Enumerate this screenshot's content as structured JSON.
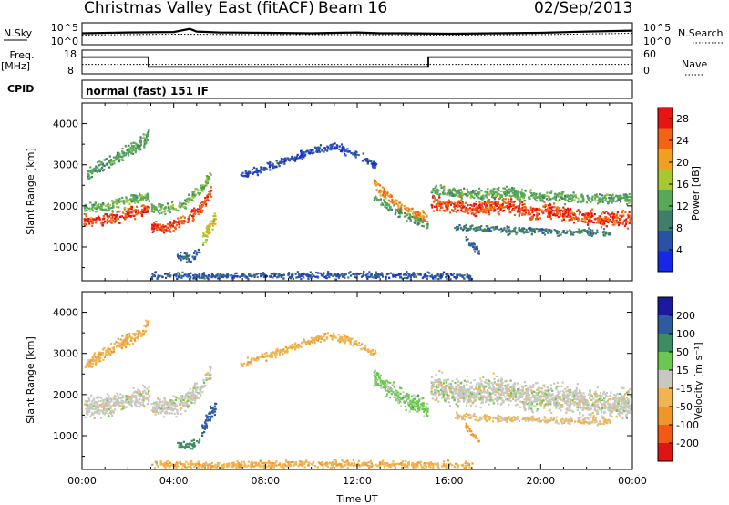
{
  "header": {
    "title": "Christmas Valley East (fitACF)",
    "beam": "Beam 16",
    "date": "02/Sep/2013"
  },
  "strip_labels": {
    "nsky": "N.Sky",
    "nsearch": "N.Search",
    "freq_line1": "Freq.",
    "freq_line2": "[MHz]",
    "nave": "Nave",
    "cpid": "CPID",
    "cpid_value": "normal (fast) 151 IF"
  },
  "chart_data": [
    {
      "type": "line",
      "panel": "noise",
      "left_axis_ticks": [
        "10^5",
        "10^0"
      ],
      "right_axis_ticks": [
        "10^5",
        "10^0"
      ],
      "series": [
        {
          "name": "N.Sky",
          "x": [
            0,
            2,
            4,
            4.7,
            5,
            6,
            8,
            10,
            12,
            13,
            14,
            16,
            18,
            20,
            22,
            24
          ],
          "y": [
            2.6,
            2.8,
            2.9,
            3.6,
            3.0,
            2.8,
            2.7,
            2.6,
            2.8,
            2.6,
            2.6,
            2.5,
            2.6,
            2.7,
            3.0,
            3.2
          ]
        },
        {
          "name": "N.Search",
          "x": [
            0,
            4,
            8,
            12,
            16,
            20,
            24
          ],
          "y": [
            2.2,
            2.4,
            2.3,
            2.3,
            2.2,
            2.3,
            2.6
          ]
        }
      ]
    },
    {
      "type": "line",
      "panel": "frequency",
      "left_axis_ticks": [
        "18",
        "8"
      ],
      "right_axis_ticks": [
        "60",
        "0"
      ],
      "series": [
        {
          "name": "Freq.",
          "x": [
            0,
            2.9,
            2.9,
            15.1,
            15.1,
            23.95
          ],
          "y": [
            14.5,
            14.5,
            9.5,
            9.5,
            14.5,
            14.5
          ]
        },
        {
          "name": "Nave",
          "x": [
            0,
            24
          ],
          "y": [
            10.8,
            10.8
          ]
        }
      ]
    },
    {
      "type": "heatmap",
      "panel": "power",
      "xlabel": "",
      "ylabel": "Slant Range [km]",
      "xlim": [
        0,
        24
      ],
      "ylim": [
        180,
        4500
      ],
      "y_ticks": [
        1000,
        2000,
        3000,
        4000
      ],
      "colorbar": {
        "label": "Power [dB]",
        "ticks": [
          4,
          8,
          12,
          16,
          20,
          24,
          28
        ],
        "range": [
          0,
          30
        ]
      },
      "features": [
        {
          "x": [
            0.05,
            1.0,
            2.0,
            2.9
          ],
          "y": [
            1650,
            1700,
            1850,
            1950
          ],
          "width": 250,
          "value": 26
        },
        {
          "x": [
            0.05,
            1.0,
            2.0,
            2.9
          ],
          "y": [
            1950,
            2000,
            2150,
            2250
          ],
          "width": 220,
          "value": 14
        },
        {
          "x": [
            0.1,
            0.8,
            1.5,
            2.2,
            2.9
          ],
          "y": [
            2700,
            3000,
            3200,
            3400,
            3750
          ],
          "width": 260,
          "value": 12
        },
        {
          "x": [
            3.0,
            3.7,
            4.4,
            5.2,
            5.6
          ],
          "y": [
            1500,
            1500,
            1650,
            2000,
            2400
          ],
          "width": 240,
          "value": 26
        },
        {
          "x": [
            3.0,
            3.7,
            4.4,
            5.2,
            5.6
          ],
          "y": [
            1950,
            1950,
            2050,
            2450,
            2800
          ],
          "width": 200,
          "value": 14
        },
        {
          "x": [
            5.2,
            5.5,
            5.8
          ],
          "y": [
            1200,
            1450,
            1750
          ],
          "width": 320,
          "value": 18
        },
        {
          "x": [
            4.1,
            4.6,
            5.1
          ],
          "y": [
            820,
            780,
            900
          ],
          "width": 180,
          "value": 8
        },
        {
          "x": [
            6.9,
            8.0,
            9.0,
            10.0,
            11.0,
            12.0,
            12.8
          ],
          "y": [
            2750,
            2950,
            3150,
            3350,
            3450,
            3250,
            3000
          ],
          "width": 160,
          "value": 5
        },
        {
          "x": [
            12.7,
            13.3,
            14.0,
            14.6,
            15.05
          ],
          "y": [
            2550,
            2250,
            1950,
            1800,
            1700
          ],
          "width": 220,
          "value": 22
        },
        {
          "x": [
            12.7,
            13.3,
            14.0,
            14.6,
            15.05
          ],
          "y": [
            2250,
            2000,
            1800,
            1650,
            1550
          ],
          "width": 160,
          "value": 12
        },
        {
          "x": [
            15.2,
            16.2,
            17.2,
            18.4,
            19.6,
            20.6,
            21.6,
            22.6,
            23.9
          ],
          "y": [
            2100,
            2000,
            1950,
            2050,
            1850,
            1900,
            1750,
            1700,
            1700
          ],
          "width": 300,
          "value": 26
        },
        {
          "x": [
            15.2,
            16.2,
            17.2,
            18.4,
            19.6,
            20.6,
            21.6,
            22.6,
            23.9
          ],
          "y": [
            2400,
            2350,
            2300,
            2350,
            2250,
            2250,
            2200,
            2200,
            2200
          ],
          "width": 220,
          "value": 13
        },
        {
          "x": [
            16.2,
            17.5,
            19.0,
            20.5,
            21.8,
            23.0
          ],
          "y": [
            1500,
            1450,
            1420,
            1400,
            1380,
            1370
          ],
          "width": 140,
          "value": 9
        },
        {
          "x": [
            16.7,
            17.0,
            17.3
          ],
          "y": [
            1250,
            1050,
            900
          ],
          "width": 160,
          "value": 7
        },
        {
          "x": [
            3.0,
            6.0,
            9.0,
            12.0,
            15.0,
            17.0
          ],
          "y": [
            320,
            310,
            330,
            340,
            320,
            300
          ],
          "width": 130,
          "value": 6
        }
      ]
    },
    {
      "type": "heatmap",
      "panel": "velocity",
      "xlabel": "Time UT",
      "ylabel": "Slant Range [km]",
      "xlim": [
        0,
        24
      ],
      "ylim": [
        180,
        4500
      ],
      "y_ticks": [
        1000,
        2000,
        3000,
        4000
      ],
      "x_tick_labels": [
        "00:00",
        "04:00",
        "08:00",
        "12:00",
        "16:00",
        "20:00",
        "00:00"
      ],
      "colorbar": {
        "label": "Velocity [m s⁻¹]",
        "ticks": [
          -200,
          -100,
          -50,
          -15,
          15,
          50,
          100,
          200
        ],
        "range": [
          -250,
          250
        ]
      },
      "features": [
        {
          "x": [
            0.05,
            1.0,
            2.0,
            2.9
          ],
          "y": [
            1700,
            1760,
            1900,
            2000
          ],
          "width": 420,
          "value": 0
        },
        {
          "x": [
            0.1,
            0.8,
            1.5,
            2.2,
            2.9
          ],
          "y": [
            2700,
            3000,
            3200,
            3400,
            3750
          ],
          "width": 260,
          "value": -40
        },
        {
          "x": [
            3.0,
            3.7,
            4.4,
            5.2,
            5.6
          ],
          "y": [
            1700,
            1700,
            1850,
            2200,
            2600
          ],
          "width": 380,
          "value": 0
        },
        {
          "x": [
            5.2,
            5.5,
            5.8
          ],
          "y": [
            1200,
            1450,
            1750
          ],
          "width": 320,
          "value": 160
        },
        {
          "x": [
            4.1,
            4.6,
            5.1
          ],
          "y": [
            820,
            780,
            900
          ],
          "width": 180,
          "value": 70
        },
        {
          "x": [
            6.9,
            8.0,
            9.0,
            10.0,
            11.0,
            12.0,
            12.8
          ],
          "y": [
            2750,
            2950,
            3150,
            3350,
            3450,
            3250,
            3000
          ],
          "width": 160,
          "value": -40
        },
        {
          "x": [
            12.7,
            13.3,
            14.0,
            14.6,
            15.05
          ],
          "y": [
            2450,
            2150,
            1900,
            1750,
            1650
          ],
          "width": 360,
          "value": 25
        },
        {
          "x": [
            15.2,
            16.2,
            17.2,
            18.4,
            19.6,
            20.6,
            21.6,
            22.6,
            23.9
          ],
          "y": [
            2200,
            2100,
            2050,
            2150,
            1950,
            2000,
            1850,
            1800,
            1800
          ],
          "width": 560,
          "value": 0
        },
        {
          "x": [
            16.2,
            17.5,
            19.0,
            20.5,
            21.8,
            23.0
          ],
          "y": [
            1500,
            1450,
            1420,
            1400,
            1380,
            1370
          ],
          "width": 140,
          "value": -20
        },
        {
          "x": [
            16.7,
            17.0,
            17.3
          ],
          "y": [
            1250,
            1050,
            900
          ],
          "width": 160,
          "value": -60
        },
        {
          "x": [
            3.0,
            6.0,
            9.0,
            12.0,
            15.0,
            17.0
          ],
          "y": [
            320,
            310,
            330,
            340,
            320,
            300
          ],
          "width": 150,
          "value": -40
        }
      ]
    }
  ]
}
